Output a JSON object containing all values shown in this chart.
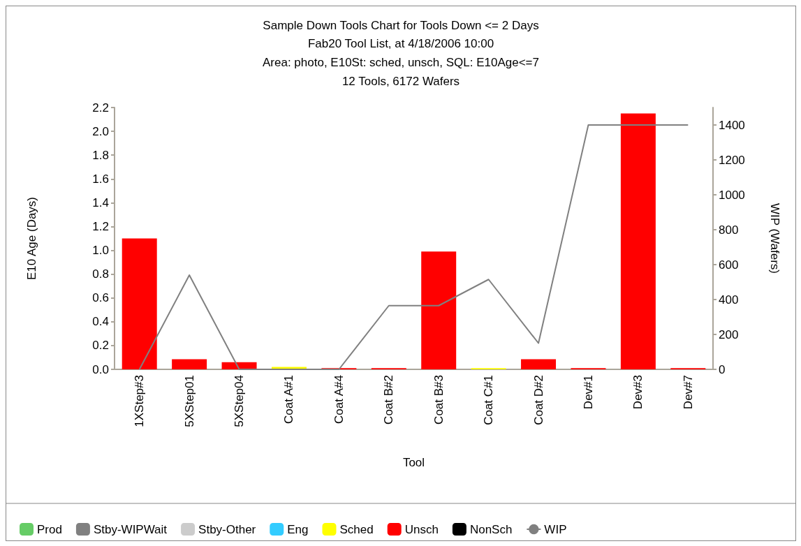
{
  "chart_data": {
    "type": "bar",
    "title": "Sample Down Tools Chart for Tools Down <= 2 Days",
    "subtitle": "Fab20 Tool List, at 4/18/2006 10:00\nArea: photo, E10St: sched, unsch, SQL: E10Age<=7\n12 Tools, 6172 Wafers",
    "xlabel": "Tool",
    "ylabel": "E10 Age (Days)",
    "y2label": "WIP (Wafers)",
    "categories": [
      "1XStep#3",
      "5XStep01",
      "5XStep04",
      "Coat A#1",
      "Coat A#4",
      "Coat B#2",
      "Coat B#3",
      "Coat C#1",
      "Coat D#2",
      "Dev#1",
      "Dev#3",
      "Dev#7"
    ],
    "stacked": true,
    "series": [
      {
        "name": "Prod",
        "color": "#66cc66",
        "values": [
          0,
          0,
          0,
          0,
          0,
          0,
          0,
          0,
          0,
          0,
          0,
          0
        ]
      },
      {
        "name": "Stby-WIPWait",
        "color": "#808080",
        "values": [
          0,
          0,
          0,
          0,
          0,
          0,
          0,
          0,
          0,
          0,
          0,
          0
        ]
      },
      {
        "name": "Stby-Other",
        "color": "#cccccc",
        "values": [
          0,
          0,
          0,
          0,
          0,
          0,
          0,
          0,
          0,
          0,
          0,
          0
        ]
      },
      {
        "name": "Eng",
        "color": "#33ccff",
        "values": [
          0,
          0,
          0,
          0,
          0,
          0,
          0,
          0,
          0,
          0,
          0,
          0
        ]
      },
      {
        "name": "Sched",
        "color": "#ffff00",
        "values": [
          0,
          0,
          0,
          0.02,
          0,
          0,
          0,
          0.01,
          0,
          0,
          0,
          0
        ]
      },
      {
        "name": "Unsch",
        "color": "#ff0000",
        "values": [
          1.1,
          0.085,
          0.06,
          0,
          0.01,
          0.01,
          0.99,
          0,
          0.085,
          0.01,
          2.15,
          0.01
        ]
      },
      {
        "name": "NonSch",
        "color": "#000000",
        "values": [
          0,
          0,
          0,
          0,
          0,
          0,
          0,
          0,
          0,
          0,
          0,
          0
        ]
      },
      {
        "name": "WIP",
        "type": "line",
        "axis": "y2",
        "color": "#808080",
        "values": [
          0,
          540,
          0,
          0,
          0,
          365,
          365,
          515,
          150,
          1400,
          1400,
          1400
        ]
      }
    ],
    "ylim": [
      0,
      2.2
    ],
    "yticks": [
      {
        "value": 0,
        "label": "0.0"
      },
      0.2,
      0.4,
      0.6,
      0.8,
      {
        "value": 1,
        "label": "1.0"
      },
      1.2,
      1.4,
      1.6,
      1.8,
      {
        "value": 2,
        "label": "2.0"
      },
      2.2
    ],
    "y2lim": [
      0,
      1500
    ],
    "y2ticks": [
      0,
      200,
      400,
      600,
      800,
      1000,
      1200,
      1400
    ],
    "grid": false,
    "legend": "bottom",
    "marker": "none",
    "line_style": "solid"
  }
}
